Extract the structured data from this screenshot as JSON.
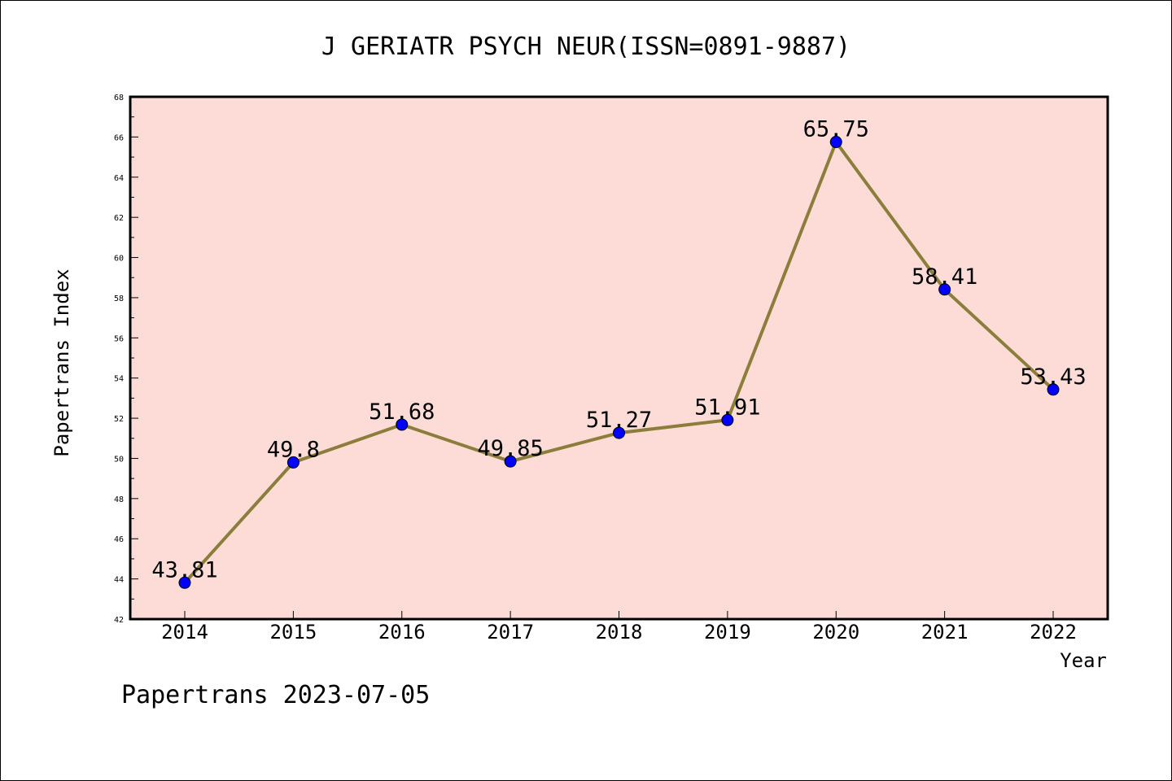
{
  "chart_data": {
    "type": "line",
    "title": "J GERIATR PSYCH NEUR(ISSN=0891-9887)",
    "xlabel": "Year",
    "ylabel": "Papertrans Index",
    "categories": [
      "2014",
      "2015",
      "2016",
      "2017",
      "2018",
      "2019",
      "2020",
      "2021",
      "2022"
    ],
    "series": [
      {
        "values": [
          43.81,
          49.8,
          51.68,
          49.85,
          51.27,
          51.91,
          65.75,
          58.41,
          53.43
        ],
        "labels": [
          "43.81",
          "49.8",
          "51.68",
          "49.85",
          "51.27",
          "51.91",
          "65.75",
          "58.41",
          "53.43"
        ]
      }
    ],
    "ylim": [
      42,
      68
    ],
    "yticks": [
      "42",
      "44",
      "46",
      "48",
      "50",
      "52",
      "54",
      "56",
      "58",
      "60",
      "62",
      "64",
      "66",
      "68"
    ],
    "grid": false,
    "colors": {
      "plot_background": "#fddcd8",
      "line": "#8b7d3a",
      "marker": "#0000ff"
    }
  },
  "footer": "Papertrans 2023-07-05"
}
